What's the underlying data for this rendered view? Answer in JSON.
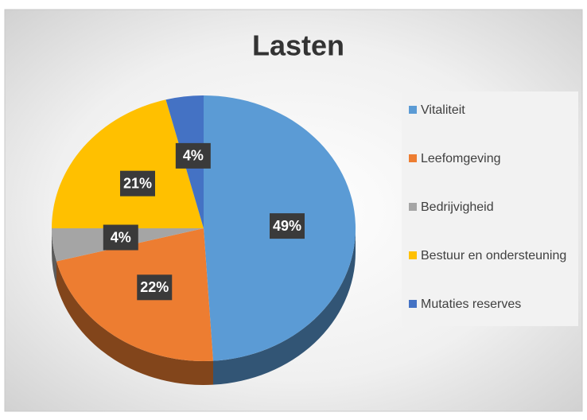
{
  "chart_data": {
    "type": "pie",
    "title": "Lasten",
    "categories": [
      "Vitaliteit",
      "Leefomgeving",
      "Bedrijvigheid",
      "Bestuur en ondersteuning",
      "Mutaties reserves"
    ],
    "values": [
      49,
      22,
      4,
      21,
      4
    ],
    "value_labels": [
      "49%",
      "22%",
      "4%",
      "21%",
      "4%"
    ],
    "colors": [
      "#5b9bd5",
      "#ed7d31",
      "#a5a5a5",
      "#ffc000",
      "#4472c4"
    ],
    "legend": "right"
  }
}
